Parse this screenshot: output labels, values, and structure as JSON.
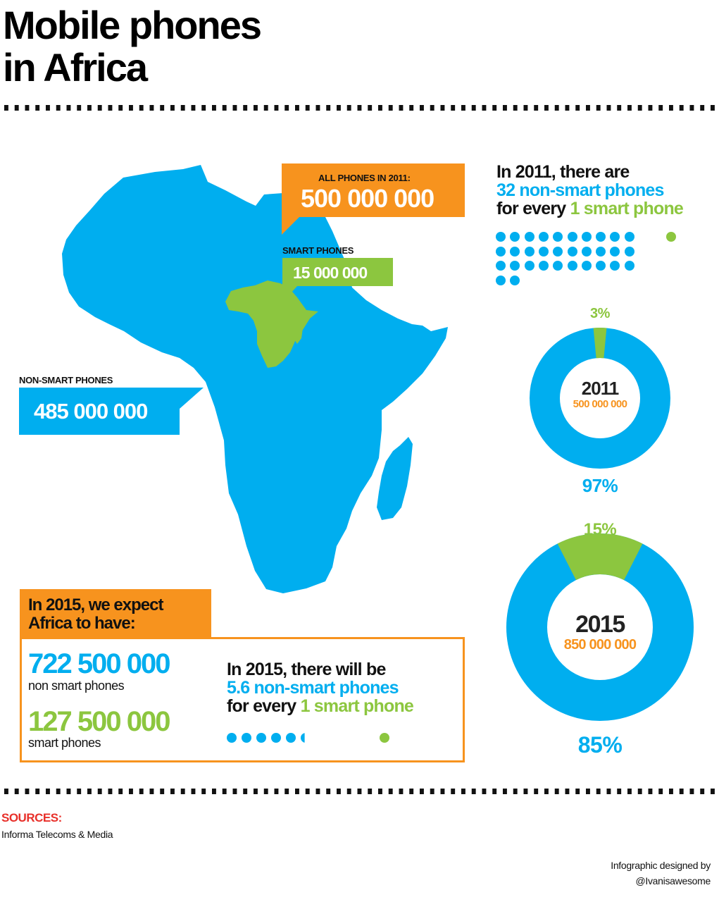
{
  "header": {
    "title_line1": "Mobile phones",
    "title_line2": "in Africa"
  },
  "colors": {
    "non_smart": "#00aeef",
    "smart": "#8cc63f",
    "total": "#f7931e",
    "sources_heading": "#e8302a"
  },
  "map": {
    "all_phones_label": "ALL PHONES IN 2011:",
    "all_phones_value": "500 000 000",
    "smart_label": "SMART PHONES",
    "smart_value": "15 000 000",
    "non_smart_label": "NON-SMART PHONES",
    "non_smart_value": "485 000 000"
  },
  "ratio_2011": {
    "line1": "In 2011, there are",
    "line2": "32 non-smart phones",
    "line3_prefix": "for every ",
    "line3_highlight": "1 smart phone",
    "non_smart_dots": 32,
    "smart_dots": 1
  },
  "forecast_2015": {
    "heading_line1": "In 2015, we expect",
    "heading_line2": "Africa to have:",
    "non_smart_value": "722 500 000",
    "non_smart_label": "non smart phones",
    "smart_value": "127 500 000",
    "smart_label": "smart phones",
    "ratio_line1": "In 2015, there will be",
    "ratio_line2": "5.6 non-smart phones",
    "ratio_line3_prefix": "for every ",
    "ratio_line3_highlight": "1 smart phone",
    "non_smart_dots": 5.6,
    "smart_dots": 1
  },
  "donut_2011": {
    "year": "2011",
    "total": "500 000 000",
    "smart_pct_label": "3%",
    "non_smart_pct_label": "97%"
  },
  "donut_2015": {
    "year": "2015",
    "total": "850 000 000",
    "smart_pct_label": "15%",
    "non_smart_pct_label": "85%"
  },
  "footer": {
    "sources_heading": "SOURCES:",
    "source": "Informa Telecoms & Media",
    "credit_line1": "Infographic designed by",
    "credit_line2": "@Ivanisawesome"
  },
  "chart_data": [
    {
      "type": "pie",
      "title": "2011",
      "subtitle": "500 000 000",
      "categories": [
        "Smart phones",
        "Non-smart phones"
      ],
      "values": [
        3,
        97
      ],
      "absolute_values": [
        15000000,
        485000000
      ],
      "colors": [
        "#8cc63f",
        "#00aeef"
      ],
      "donut": true
    },
    {
      "type": "pie",
      "title": "2015",
      "subtitle": "850 000 000",
      "categories": [
        "Smart phones",
        "Non-smart phones"
      ],
      "values": [
        15,
        85
      ],
      "absolute_values": [
        127500000,
        722500000
      ],
      "colors": [
        "#8cc63f",
        "#00aeef"
      ],
      "donut": true
    },
    {
      "type": "bar",
      "title": "Non-smart phones per 1 smart phone",
      "categories": [
        "2011",
        "2015"
      ],
      "values": [
        32,
        5.6
      ]
    }
  ]
}
